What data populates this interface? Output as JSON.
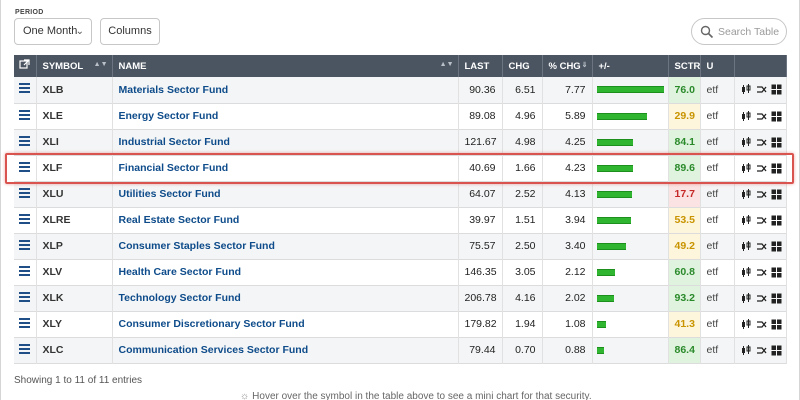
{
  "toolbar": {
    "period_label": "PERIOD",
    "period_value": "One Month",
    "columns_label": "Columns",
    "search_placeholder": "Search Table"
  },
  "table": {
    "headers": {
      "symbol": "SYMBOL",
      "name": "NAME",
      "last": "LAST",
      "chg": "CHG",
      "pct_chg": "% CHG",
      "bar": "+/-",
      "sctr": "SCTR",
      "u": "U"
    },
    "rows": [
      {
        "symbol": "XLB",
        "name": "Materials Sector Fund",
        "last": "90.36",
        "chg": "6.51",
        "pct_chg": "7.77",
        "bar_pct": 100,
        "sctr": "76.0",
        "sctr_color": "#dff3df",
        "sctr_text": "#2a8a2a",
        "u": "etf"
      },
      {
        "symbol": "XLE",
        "name": "Energy Sector Fund",
        "last": "89.08",
        "chg": "4.96",
        "pct_chg": "5.89",
        "bar_pct": 76,
        "sctr": "29.9",
        "sctr_color": "#fdf5dc",
        "sctr_text": "#c99400",
        "u": "etf"
      },
      {
        "symbol": "XLI",
        "name": "Industrial Sector Fund",
        "last": "121.67",
        "chg": "4.98",
        "pct_chg": "4.25",
        "bar_pct": 55,
        "sctr": "84.1",
        "sctr_color": "#dff3df",
        "sctr_text": "#2a8a2a",
        "u": "etf"
      },
      {
        "symbol": "XLF",
        "name": "Financial Sector Fund",
        "last": "40.69",
        "chg": "1.66",
        "pct_chg": "4.23",
        "bar_pct": 55,
        "sctr": "89.6",
        "sctr_color": "#dff3df",
        "sctr_text": "#2a8a2a",
        "u": "etf"
      },
      {
        "symbol": "XLU",
        "name": "Utilities Sector Fund",
        "last": "64.07",
        "chg": "2.52",
        "pct_chg": "4.13",
        "bar_pct": 53,
        "sctr": "17.7",
        "sctr_color": "#fbe3e3",
        "sctr_text": "#c62828",
        "u": "etf"
      },
      {
        "symbol": "XLRE",
        "name": "Real Estate Sector Fund",
        "last": "39.97",
        "chg": "1.51",
        "pct_chg": "3.94",
        "bar_pct": 51,
        "sctr": "53.5",
        "sctr_color": "#fdf5dc",
        "sctr_text": "#c99400",
        "u": "etf"
      },
      {
        "symbol": "XLP",
        "name": "Consumer Staples Sector Fund",
        "last": "75.57",
        "chg": "2.50",
        "pct_chg": "3.40",
        "bar_pct": 44,
        "sctr": "49.2",
        "sctr_color": "#fdf5dc",
        "sctr_text": "#c99400",
        "u": "etf"
      },
      {
        "symbol": "XLV",
        "name": "Health Care Sector Fund",
        "last": "146.35",
        "chg": "3.05",
        "pct_chg": "2.12",
        "bar_pct": 27,
        "sctr": "60.8",
        "sctr_color": "#dff3df",
        "sctr_text": "#2a8a2a",
        "u": "etf"
      },
      {
        "symbol": "XLK",
        "name": "Technology Sector Fund",
        "last": "206.78",
        "chg": "4.16",
        "pct_chg": "2.02",
        "bar_pct": 26,
        "sctr": "93.2",
        "sctr_color": "#dff3df",
        "sctr_text": "#2a8a2a",
        "u": "etf"
      },
      {
        "symbol": "XLY",
        "name": "Consumer Discretionary Sector Fund",
        "last": "179.82",
        "chg": "1.94",
        "pct_chg": "1.08",
        "bar_pct": 14,
        "sctr": "41.3",
        "sctr_color": "#fdf5dc",
        "sctr_text": "#c99400",
        "u": "etf"
      },
      {
        "symbol": "XLC",
        "name": "Communication Services Sector Fund",
        "last": "79.44",
        "chg": "0.70",
        "pct_chg": "0.88",
        "bar_pct": 11,
        "sctr": "86.4",
        "sctr_color": "#dff3df",
        "sctr_text": "#2a8a2a",
        "u": "etf"
      }
    ],
    "highlighted_symbol": "XLF"
  },
  "footer": {
    "showing": "Showing 1 to 11 of 11 entries",
    "hint": "Hover over the symbol in the table above to see a mini chart for that security."
  },
  "colors": {
    "header_bg": "#4b5562",
    "link": "#0d4b8a",
    "bar_green": "#2fb52f",
    "highlight_red": "#d9534f"
  },
  "icons": [
    "external-link-icon",
    "hamburger-icon",
    "chevron-down-icon",
    "search-icon",
    "candlestick-chart-icon",
    "compare-icon",
    "grid-icon"
  ]
}
